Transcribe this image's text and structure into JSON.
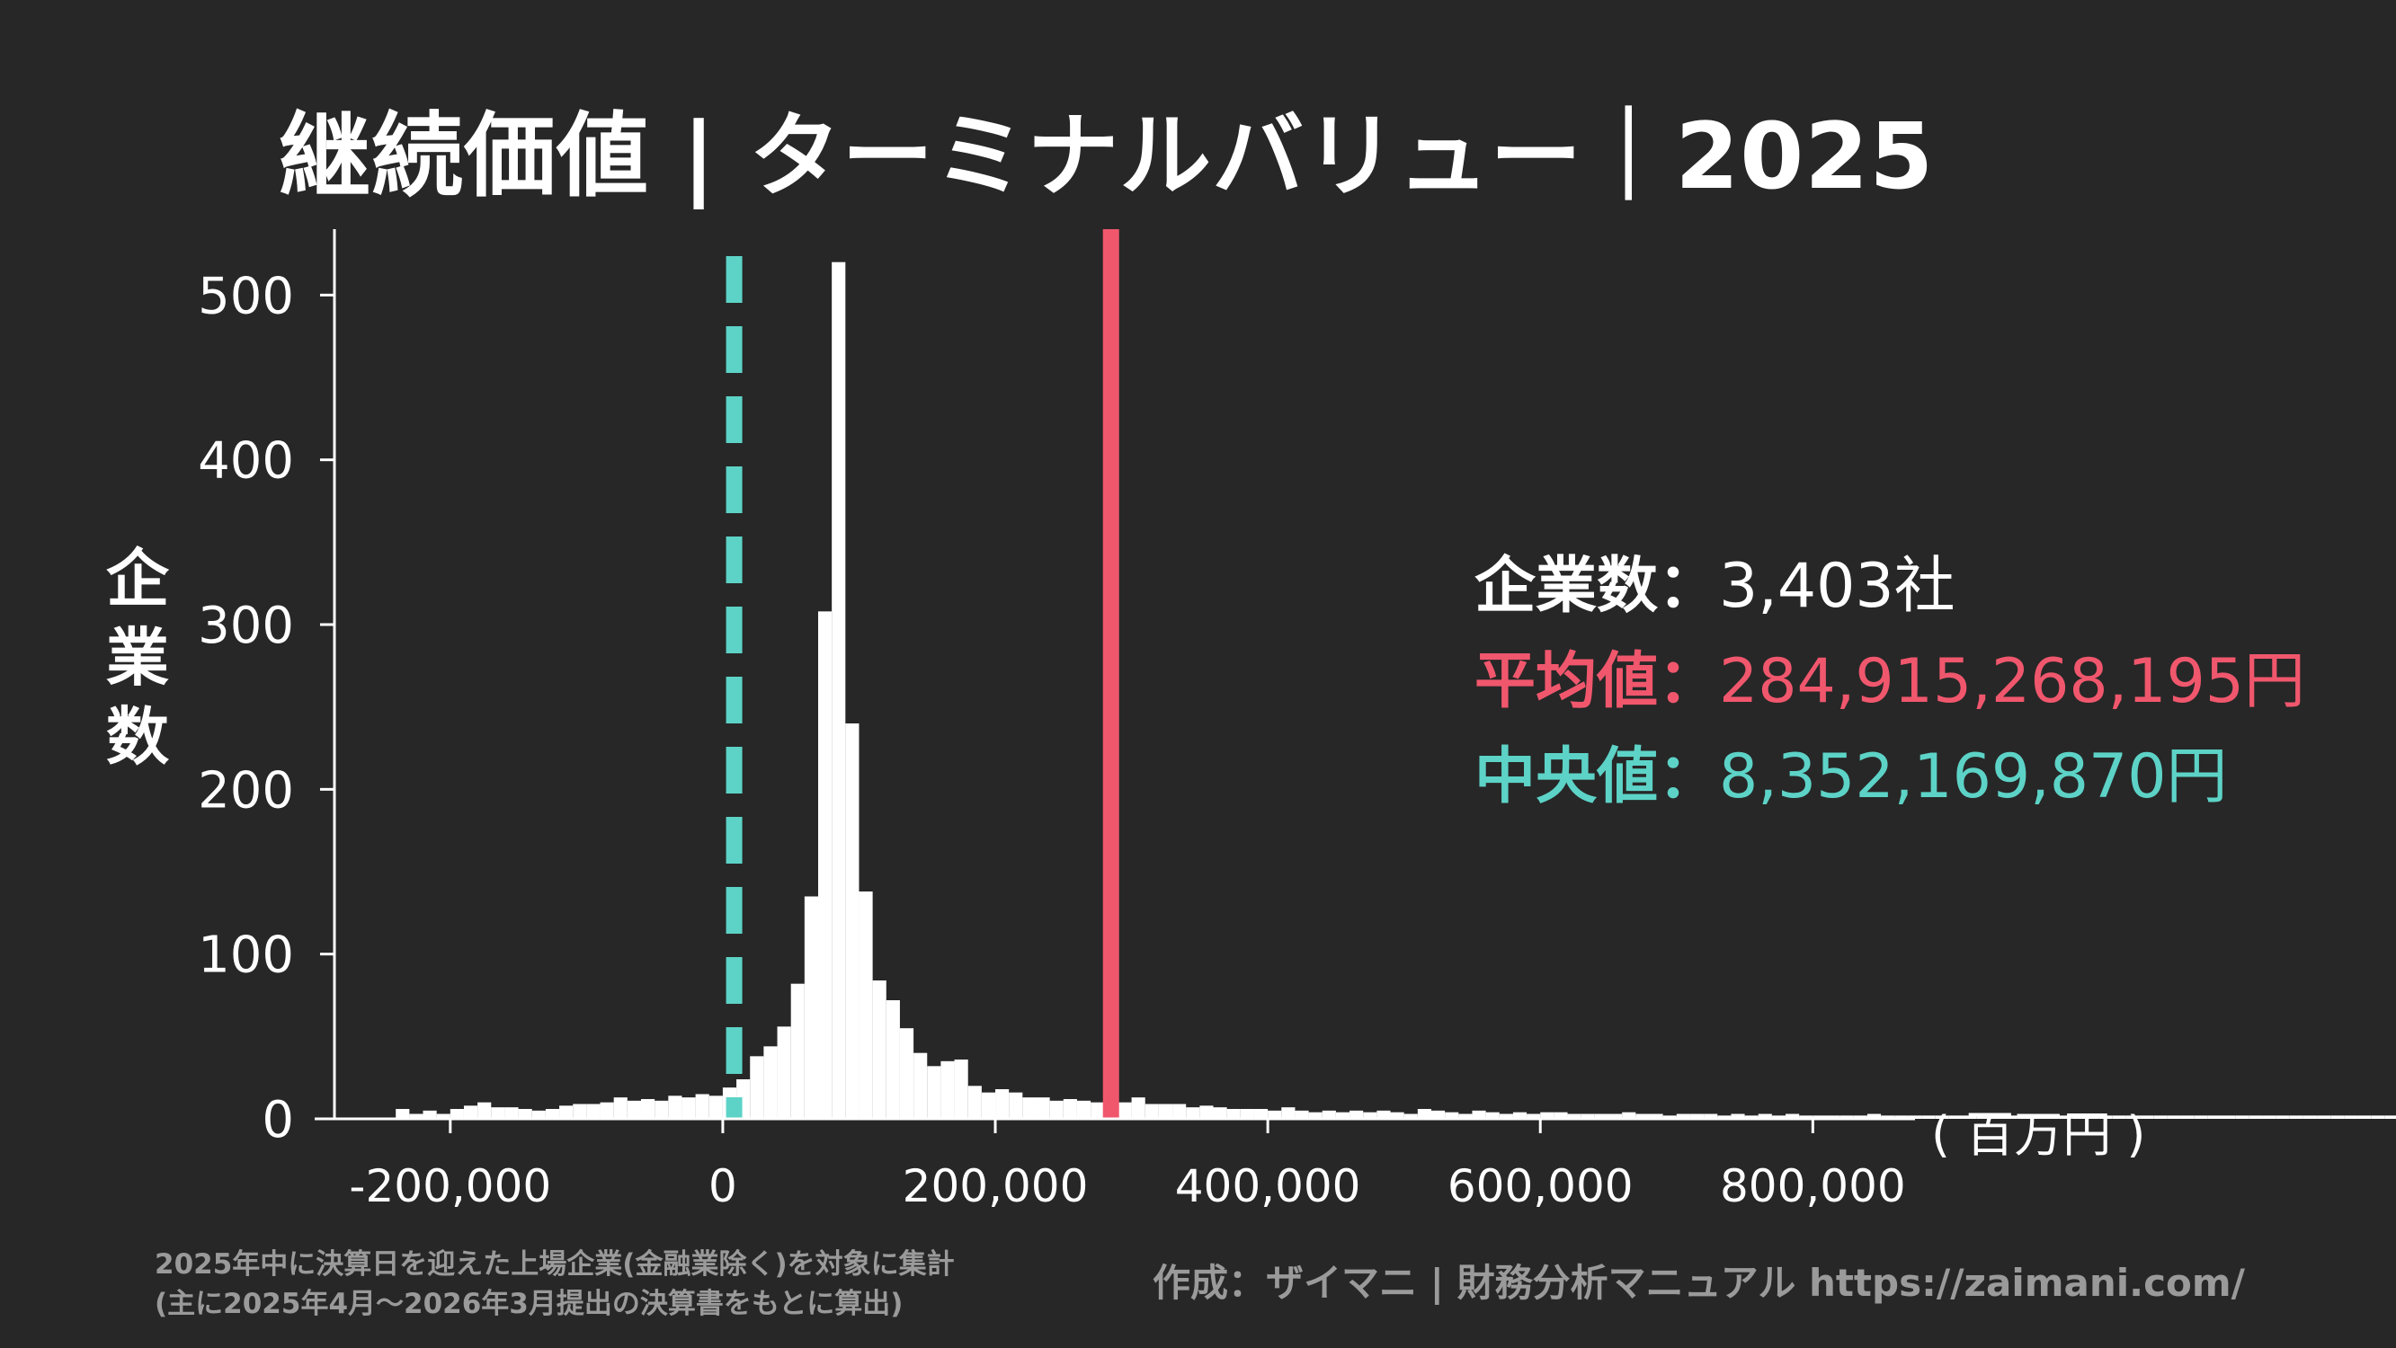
{
  "header": {
    "title": "継続価値 | ターミナルバリュー｜2025"
  },
  "colors": {
    "background": "#272727",
    "bars": "#ffffff",
    "mean": "#f0576d",
    "median": "#5dd3c7",
    "note": "#9a9a9a"
  },
  "stats": {
    "count_label": "企業数：",
    "count_value": "3,403社",
    "mean_label": "平均値：",
    "mean_value": "284,915,268,195円",
    "median_label": "中央値：",
    "median_value": "8,352,169,870円"
  },
  "footer": {
    "note_line1": "2025年中に決算日を迎えた上場企業(金融業除く)を対象に集計",
    "note_line2": "(主に2025年4月〜2026年3月提出の決算書をもとに算出)",
    "credit": "作成：ザイマニ | 財務分析マニュアル https://zaimani.com/"
  },
  "chart_data": {
    "type": "bar",
    "title": "継続価値 | ターミナルバリュー｜2025",
    "ylabel": "企業数",
    "xunit": "( 百万円 )",
    "xlim": [
      -285000,
      875000
    ],
    "ylim": [
      0,
      540
    ],
    "xticks": [
      -200000,
      0,
      200000,
      400000,
      600000,
      800000
    ],
    "xtick_labels": [
      "-200,000",
      "0",
      "200,000",
      "400,000",
      "600,000",
      "800,000"
    ],
    "yticks": [
      0,
      100,
      200,
      300,
      400,
      500
    ],
    "ytick_labels": [
      "0",
      "100",
      "200",
      "300",
      "400",
      "500"
    ],
    "bin_width": 10000,
    "bin_start": -240000,
    "values": [
      6,
      3,
      5,
      3,
      6,
      8,
      10,
      7,
      7,
      6,
      5,
      6,
      8,
      9,
      9,
      10,
      13,
      11,
      12,
      11,
      14,
      13,
      15,
      14,
      19,
      24,
      38,
      44,
      56,
      82,
      135,
      308,
      520,
      240,
      138,
      84,
      72,
      55,
      40,
      32,
      35,
      36,
      20,
      16,
      18,
      16,
      13,
      13,
      11,
      12,
      11,
      10,
      9,
      10,
      13,
      9,
      9,
      9,
      7,
      8,
      7,
      6,
      6,
      6,
      5,
      7,
      5,
      4,
      5,
      4,
      5,
      4,
      5,
      4,
      3,
      6,
      5,
      4,
      3,
      5,
      4,
      3,
      4,
      3,
      4,
      4,
      3,
      3,
      3,
      3,
      4,
      3,
      3,
      2,
      3,
      3,
      3,
      2,
      3,
      2,
      3,
      2,
      3,
      2,
      2,
      2,
      2,
      2,
      3,
      2,
      2,
      2,
      2,
      2,
      2,
      2,
      2,
      2,
      2,
      3,
      2,
      2,
      2,
      2,
      2,
      2,
      2,
      2,
      2,
      2,
      2,
      2,
      2,
      2,
      2,
      2,
      2,
      2,
      2,
      2,
      2,
      2,
      2,
      2,
      2,
      2,
      2,
      2,
      2,
      2,
      2
    ],
    "mean_line": 284915,
    "median_line": 8352,
    "mean_label": "平均値",
    "median_label": "中央値"
  }
}
